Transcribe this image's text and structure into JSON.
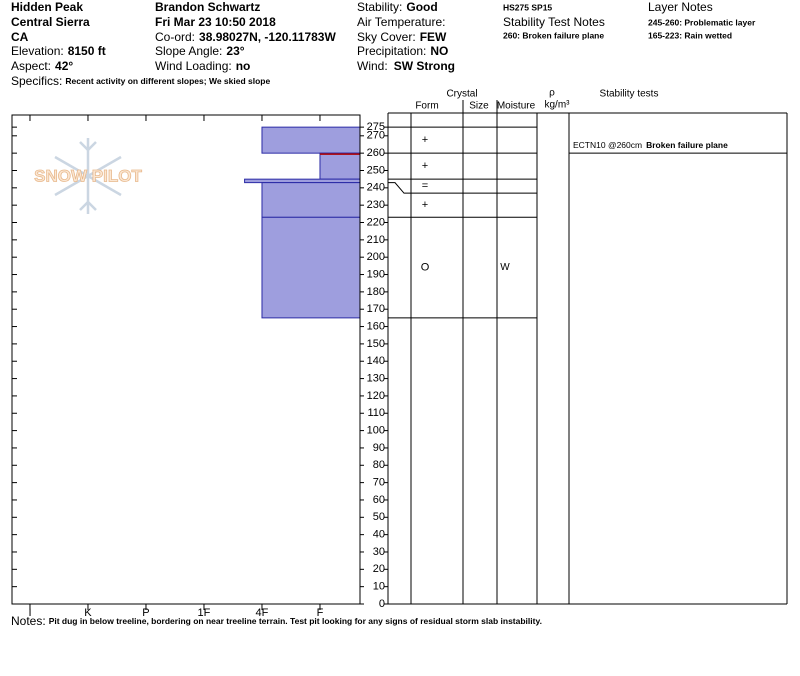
{
  "header": {
    "location": [
      "Hidden Peak",
      "Central Sierra",
      "CA"
    ],
    "elevation": {
      "label": "Elevation:",
      "value": "8150 ft"
    },
    "aspect": {
      "label": "Aspect:",
      "value": "42°"
    },
    "specifics": {
      "label": "Specifics:",
      "value": "Recent activity on different slopes; We skied slope"
    },
    "observer": "Brandon Schwartz",
    "datetime": "Fri Mar 23 10:50 2018",
    "coord": {
      "label": "Co-ord:",
      "value": "38.98027N, -120.11783W"
    },
    "slope": {
      "label": "Slope Angle:",
      "value": "23°"
    },
    "wind_loading": {
      "label": "Wind Loading:",
      "value": "no"
    },
    "stability": {
      "label": "Stability:",
      "value": "Good"
    },
    "air_temp": {
      "label": "Air Temperature:"
    },
    "sky": {
      "label": "Sky Cover:",
      "value": "FEW"
    },
    "precip": {
      "label": "Precipitation:",
      "value": "NO"
    },
    "wind": {
      "label": "Wind:",
      "value": "SW Strong"
    },
    "hs_sp": "HS275 SP15",
    "stability_notes": {
      "title": "Stability Test Notes",
      "items": [
        "260: Broken failure plane"
      ]
    },
    "layer_notes": {
      "title": "Layer Notes",
      "items": [
        "245-260: Problematic layer",
        "165-223: Rain wetted"
      ]
    },
    "notes": {
      "label": "Notes:",
      "value": "Pit dug in below treeline, bordering on near treeline terrain. Test pit looking for any signs of residual storm slab instability."
    },
    "logo": "SNOW PILOT"
  },
  "chart_data": {
    "type": "snow-profile",
    "color": "#9e9ede",
    "edge_color": "#2b2ba6",
    "failure_color": "#b00000",
    "ylim": [
      0,
      282
    ],
    "yticks": [
      0,
      10,
      20,
      30,
      40,
      50,
      60,
      70,
      80,
      90,
      100,
      110,
      120,
      130,
      140,
      150,
      160,
      170,
      180,
      190,
      200,
      210,
      220,
      230,
      240,
      250,
      260,
      270,
      275
    ],
    "xlim": [
      6.31,
      0.31
    ],
    "xticks": [
      {
        "value": 6,
        "label": "I"
      },
      {
        "value": 5,
        "label": "K"
      },
      {
        "value": 4,
        "label": "P"
      },
      {
        "value": 3,
        "label": "1F"
      },
      {
        "value": 2,
        "label": "4F"
      },
      {
        "value": 1,
        "label": "F"
      }
    ],
    "table_headers": {
      "crystal": "Crystal",
      "form": "Form",
      "size": "Size",
      "moisture": "Moisture",
      "rho": "ρ",
      "density": "kg/m³",
      "stability": "Stability tests"
    },
    "layers": [
      {
        "top": 275,
        "bottom": 260,
        "hardness": 2,
        "form": "+"
      },
      {
        "top": 260,
        "bottom": 245,
        "hardness": 1,
        "form": "+"
      },
      {
        "top": 245,
        "bottom": 243,
        "hardness": 2.3,
        "form": "="
      },
      {
        "top": 243,
        "bottom": 223,
        "hardness": 2,
        "form": "+"
      },
      {
        "top": 223,
        "bottom": 165,
        "hardness": 2,
        "form": "O",
        "moisture": "W"
      }
    ],
    "stability_tests": [
      {
        "depth": 260,
        "test": "ECTN10 @260cm",
        "note": "Broken failure plane"
      }
    ]
  }
}
